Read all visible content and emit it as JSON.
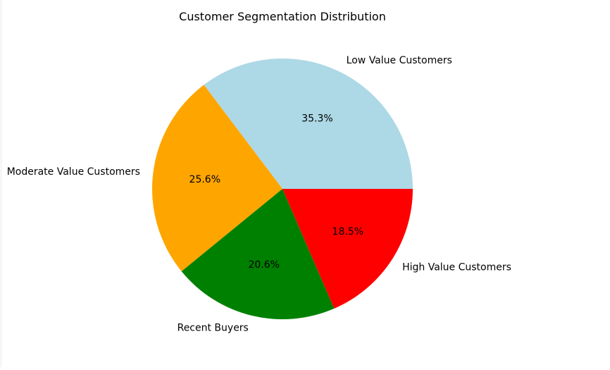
{
  "chart_data": {
    "type": "pie",
    "title": "Customer Segmentation Distribution",
    "start_angle_deg": 0,
    "direction": "counterclockwise",
    "slices": [
      {
        "label": "Low Value Customers",
        "value": 35.3,
        "pct_label": "35.3%",
        "color": "#add8e6"
      },
      {
        "label": "Moderate Value Customers",
        "value": 25.6,
        "pct_label": "25.6%",
        "color": "#ffa500"
      },
      {
        "label": "Recent Buyers",
        "value": 20.6,
        "pct_label": "20.6%",
        "color": "#008000"
      },
      {
        "label": "High Value Customers",
        "value": 18.5,
        "pct_label": "18.5%",
        "color": "#ff0000"
      }
    ]
  }
}
